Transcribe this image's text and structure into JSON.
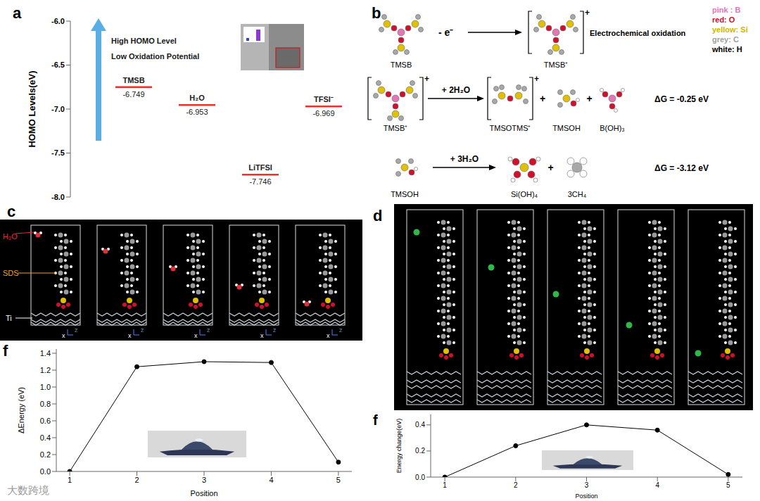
{
  "chart_data": [
    {
      "panel": "a",
      "type": "level",
      "y_label": "HOMO Levels(eV)",
      "annotations": [
        "High HOMO Level",
        "Low Oxidation Potential"
      ],
      "categories": [
        "TMSB",
        "H₂O",
        "LiTFSI",
        "TFSI⁻"
      ],
      "values": [
        -6.749,
        -6.953,
        -7.746,
        -6.969
      ],
      "color": "#e8322d",
      "data_labels": true,
      "tick_labels": "y",
      "ylim": [
        -8,
        -6
      ],
      "yticks": [
        {
          "value": -8,
          "label": "-8.0"
        },
        -7.5,
        {
          "value": -7,
          "label": "-7.0"
        },
        -6.5,
        {
          "value": -6,
          "label": "-6.0"
        }
      ]
    },
    {
      "panel": "f",
      "type": "line",
      "x_label": "Position",
      "y_label": "ΔEnergy (eV)",
      "x": [
        1,
        2,
        3,
        4,
        5
      ],
      "values": [
        0,
        1.24,
        1.3,
        1.29,
        0.11
      ],
      "color": "#000000",
      "marker": "circle",
      "line_style": "solid",
      "xlim": [
        0.8,
        5.2
      ],
      "xticks": [
        1,
        2,
        3,
        4,
        5
      ],
      "ylim": [
        0,
        1.45
      ],
      "yticks": [
        {
          "value": 0,
          "label": "0.0"
        },
        0.2,
        0.4,
        0.6,
        0.8,
        {
          "value": 1,
          "label": "1.0"
        },
        1.2,
        1.4
      ]
    },
    {
      "panel": "f",
      "type": "line",
      "x_label": "Position",
      "y_label": "Energy change(eV)",
      "x": [
        1,
        2,
        3,
        4,
        5
      ],
      "values": [
        0,
        0.24,
        0.4,
        0.36,
        0.02
      ],
      "color": "#000000",
      "marker": "circle",
      "line_style": "solid",
      "xlim": [
        0.8,
        5.2
      ],
      "xticks": [
        1,
        2,
        3,
        4,
        5
      ],
      "ylim": [
        0,
        0.48
      ],
      "yticks": [
        {
          "value": 0,
          "label": "0.0"
        },
        0.2,
        0.4
      ]
    }
  ],
  "diagrams": {
    "b": {
      "panel": "b",
      "plus": "+",
      "key": [
        {
          "label": "pink : B",
          "color": "#e377b4"
        },
        {
          "label": "red: O",
          "color": "#d0102c"
        },
        {
          "label": "yellow: Si",
          "color": "#d4b400"
        },
        {
          "label": "grey: C",
          "color": "#a0a0a0"
        },
        {
          "label": "white: H",
          "color": "#000000"
        }
      ],
      "reactions": [
        {
          "reactants": [
            "TMSB"
          ],
          "reagent": "- e⁻",
          "products": [
            "TMSB⁺"
          ],
          "note": "Electrochemical oxidation"
        },
        {
          "reactants": [
            "TMSB⁺"
          ],
          "reagent": "+ 2H₂O",
          "products": [
            "TMSOTMS⁺",
            "TMSOH",
            "B(OH)₃"
          ],
          "note": "ΔG = -0.25 eV"
        },
        {
          "reactants": [
            "TMSOH"
          ],
          "reagent": "+ 3H₂O",
          "products": [
            "Si(OH)₄",
            "3CH₄"
          ],
          "note": "ΔG = -3.12 eV"
        }
      ]
    },
    "c": {
      "panel": "c",
      "labels": [
        "H₂O",
        "SDS",
        "Ti"
      ],
      "axes": [
        "x",
        "z"
      ]
    },
    "d": {
      "panel": "d"
    }
  },
  "watermark": "大数跨境"
}
